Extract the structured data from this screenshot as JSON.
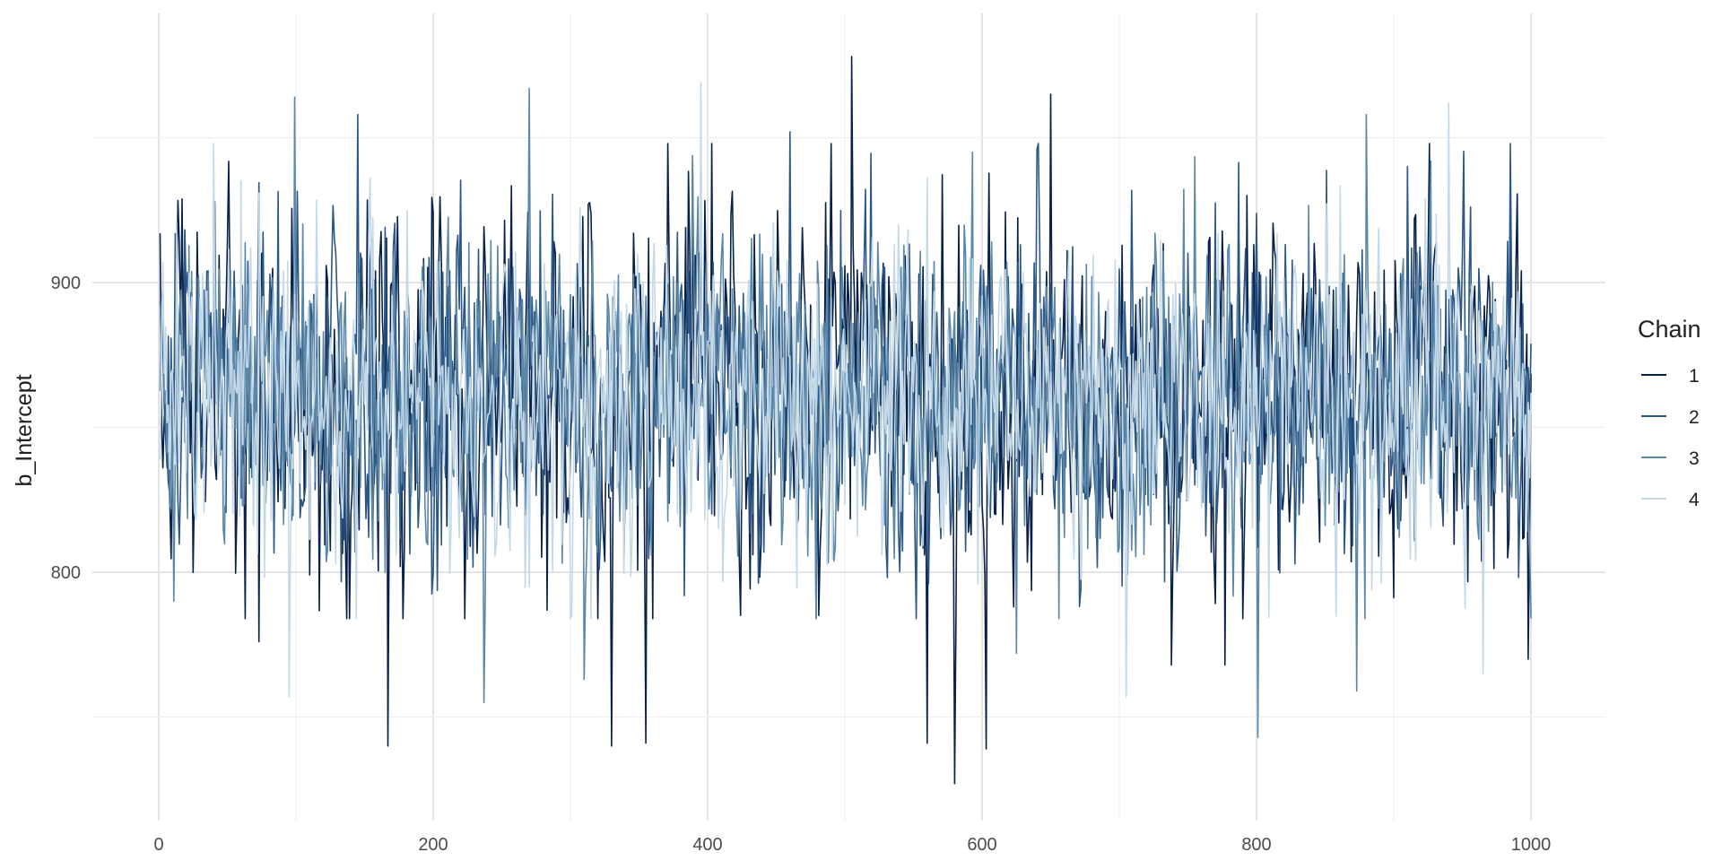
{
  "chart_data": {
    "type": "line",
    "title": "",
    "xlabel": "",
    "ylabel": "b_Intercept",
    "xlim": [
      0,
      1000
    ],
    "ylim": [
      727,
      982
    ],
    "x_ticks": [
      "0",
      "200",
      "400",
      "600",
      "800",
      "1000"
    ],
    "y_ticks": [
      "800",
      "900"
    ],
    "grid": true,
    "legend": {
      "title": "Chain",
      "position": "right"
    },
    "x": {
      "start": 1,
      "end": 1000,
      "step": 1
    },
    "series": [
      {
        "name": "1",
        "color": "#08214a",
        "mean": 861,
        "sd": 31,
        "values": {
          "1": 917,
          "73": 776,
          "167": 740,
          "330": 740,
          "355": 741,
          "505": 978,
          "560": 741,
          "580": 727,
          "603": 739,
          "650": 965,
          "738": 768,
          "777": 768,
          "998": 770
        }
      },
      {
        "name": "2",
        "color": "#2a5785",
        "mean": 862,
        "sd": 29,
        "values": {
          "145": 958,
          "460": 952,
          "640": 946,
          "910": 940
        }
      },
      {
        "name": "3",
        "color": "#5b87a8",
        "mean": 860,
        "sd": 28,
        "values": {
          "11": 790,
          "99": 964,
          "237": 755,
          "270": 967,
          "310": 763,
          "625": 772,
          "801": 743,
          "873": 759,
          "880": 958
        }
      },
      {
        "name": "4",
        "color": "#c4d9e8",
        "mean": 862,
        "sd": 26,
        "values": {
          "40": 948,
          "95": 757,
          "395": 969,
          "705": 757,
          "940": 962,
          "965": 765
        }
      }
    ]
  }
}
